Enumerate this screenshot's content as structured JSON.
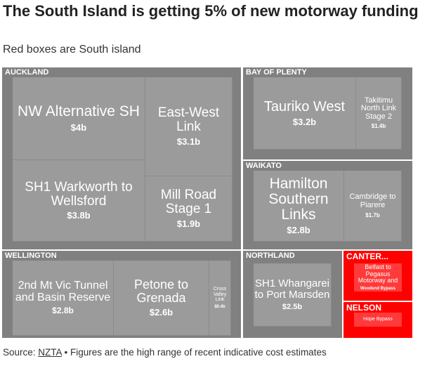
{
  "title": "The South Island is getting 5% of new motorway funding",
  "subtitle": "Red boxes are South island",
  "source": {
    "prefix": "Source: ",
    "link": "NZTA",
    "suffix": " • Figures are the high range of recent indicative cost estimates"
  },
  "colors": {
    "north_island_group": "#808080",
    "north_island_tile": "#9b9b9b",
    "south_island_group": "#ff0000",
    "south_island_tile": "#ff3a3a"
  },
  "chart_data": {
    "type": "treemap",
    "title": "The South Island is getting 5% of new motorway funding",
    "unit": "$b",
    "groups": [
      {
        "name": "AUCKLAND",
        "island": "North",
        "items": [
          {
            "name": "NW Alternative SH",
            "label": "$4b",
            "value": 4
          },
          {
            "name": "East-West Link",
            "label": "$3.1b",
            "value": 3.1
          },
          {
            "name": "SH1 Warkworth to Wellsford",
            "label": "$3.8b",
            "value": 3.8
          },
          {
            "name": "Mill Road Stage 1",
            "label": "$1.9b",
            "value": 1.9
          }
        ]
      },
      {
        "name": "BAY OF PLENTY",
        "island": "North",
        "items": [
          {
            "name": "Tauriko West",
            "label": "$3.2b",
            "value": 3.2
          },
          {
            "name": "Takitimu North Link Stage 2",
            "label": "$1.4b",
            "value": 1.4
          }
        ]
      },
      {
        "name": "WAIKATO",
        "island": "North",
        "items": [
          {
            "name": "Hamilton Southern Links",
            "label": "$2.8b",
            "value": 2.8
          },
          {
            "name": "Cambridge to Piarere",
            "label": "$1.7b",
            "value": 1.7
          }
        ]
      },
      {
        "name": "WELLINGTON",
        "island": "North",
        "items": [
          {
            "name": "2nd Mt Vic Tunnel and Basin Reserve",
            "label": "$2.8b",
            "value": 2.8
          },
          {
            "name": "Petone to Grenada",
            "label": "$2.6b",
            "value": 2.6
          },
          {
            "name": "Cross Valley Link",
            "label": "$0.4b",
            "value": 0.4
          }
        ]
      },
      {
        "name": "NORTHLAND",
        "island": "North",
        "items": [
          {
            "name": "SH1 Whangarei to Port Marsden",
            "label": "$2.5b",
            "value": 2.5
          }
        ]
      },
      {
        "name": "CANTER...",
        "island": "South",
        "items": [
          {
            "name": "Belfast to Pegasus Motorway and",
            "label": "Woodend Bypass"
          }
        ]
      },
      {
        "name": "NELSON",
        "island": "South",
        "items": [
          {
            "name": "Hope Bypass"
          }
        ]
      }
    ]
  }
}
